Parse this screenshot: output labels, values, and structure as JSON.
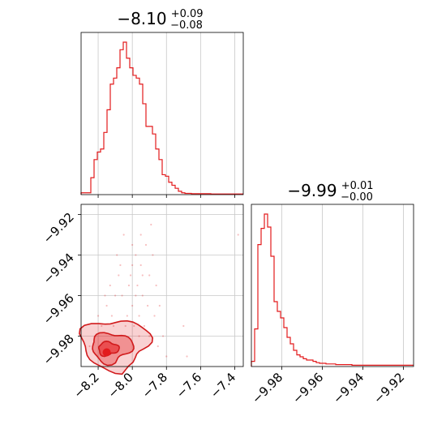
{
  "chart_data": [
    {
      "type": "histogram",
      "panel": "marginal-param1",
      "title": {
        "value": "−8.10",
        "upper": "+0.09",
        "lower": "−0.08"
      },
      "xlim": [
        -8.3,
        -7.35
      ],
      "grid": true,
      "color": "#e31a1c",
      "bin_edges_start": -8.3,
      "bin_width": 0.019,
      "counts": [
        6,
        6,
        6,
        56,
        116,
        141,
        151,
        206,
        281,
        366,
        386,
        420,
        480,
        505,
        452,
        420,
        395,
        386,
        366,
        301,
        226,
        226,
        201,
        151,
        116,
        66,
        61,
        41,
        31,
        21,
        11,
        6,
        4,
        4,
        3,
        3,
        3,
        3,
        3,
        3,
        2,
        2,
        2,
        2,
        2,
        2,
        2,
        2,
        2,
        2
      ]
    },
    {
      "type": "histogram",
      "panel": "marginal-param2",
      "title": {
        "value": "−9.99",
        "upper": "+0.01",
        "lower": "−0.00"
      },
      "xlim": [
        -9.995,
        -9.915
      ],
      "grid": true,
      "color": "#e31a1c",
      "xticks": [
        "−9.98",
        "−9.96",
        "−9.94",
        "−9.92"
      ],
      "xtick_values": [
        -9.98,
        -9.96,
        -9.94,
        -9.92
      ],
      "bin_edges_start": -9.995,
      "bin_width": 0.0016,
      "counts": [
        8,
        58,
        188,
        213,
        235,
        215,
        170,
        100,
        85,
        75,
        60,
        45,
        35,
        25,
        18,
        15,
        12,
        10,
        10,
        8,
        6,
        5,
        5,
        4,
        4,
        4,
        3,
        3,
        3,
        3,
        3,
        2,
        2,
        2,
        2,
        2,
        2,
        2,
        2,
        2,
        2,
        2,
        2,
        2,
        2,
        2,
        2,
        2,
        2,
        2
      ]
    },
    {
      "type": "scatter",
      "panel": "joint-density",
      "xlim": [
        -8.3,
        -7.35
      ],
      "ylim": [
        -9.995,
        -9.915
      ],
      "grid": true,
      "color": "#e31a1c",
      "xticks": [
        "−8.2",
        "−8.0",
        "−7.8",
        "−7.6",
        "−7.4"
      ],
      "xtick_values": [
        -8.2,
        -8.0,
        -7.8,
        -7.6,
        -7.4
      ],
      "yticks": [
        "−9.92",
        "−9.94",
        "−9.96",
        "−9.98"
      ],
      "ytick_values": [
        -9.92,
        -9.94,
        -9.96,
        -9.98
      ],
      "density_peak": {
        "x": -8.15,
        "y": -9.988
      },
      "contour_levels": [
        {
          "center": [
            -8.14,
            -9.986
          ],
          "radius": [
            0.06,
            0.003
          ],
          "fill_opacity": 0.55
        },
        {
          "center": [
            -8.12,
            -9.985
          ],
          "radius": [
            0.12,
            0.0065
          ],
          "fill_opacity": 0.35
        },
        {
          "center": [
            -8.1,
            -9.983
          ],
          "radius": [
            0.2,
            0.011
          ],
          "fill_opacity": 0.2
        }
      ],
      "points": [
        [
          -8.05,
          -9.93
        ],
        [
          -7.98,
          -9.94
        ],
        [
          -8.02,
          -9.955
        ],
        [
          -7.95,
          -9.945
        ],
        [
          -8.1,
          -9.96
        ],
        [
          -7.92,
          -9.935
        ],
        [
          -8.0,
          -9.965
        ],
        [
          -7.97,
          -9.955
        ],
        [
          -8.12,
          -9.97
        ],
        [
          -7.9,
          -9.95
        ],
        [
          -8.08,
          -9.95
        ],
        [
          -7.94,
          -9.96
        ],
        [
          -8.15,
          -9.965
        ],
        [
          -7.88,
          -9.94
        ],
        [
          -8.0,
          -9.945
        ],
        [
          -7.96,
          -9.97
        ],
        [
          -8.18,
          -9.975
        ],
        [
          -7.86,
          -9.955
        ],
        [
          -8.06,
          -9.96
        ],
        [
          -7.99,
          -9.975
        ],
        [
          -8.2,
          -9.97
        ],
        [
          -7.84,
          -9.965
        ],
        [
          -8.03,
          -9.97
        ],
        [
          -7.93,
          -9.975
        ],
        [
          -8.09,
          -9.94
        ],
        [
          -7.89,
          -9.925
        ],
        [
          -7.95,
          -9.93
        ],
        [
          -8.04,
          -9.975
        ],
        [
          -7.91,
          -9.965
        ],
        [
          -8.13,
          -9.955
        ],
        [
          -7.82,
          -9.98
        ],
        [
          -8.22,
          -9.98
        ],
        [
          -7.7,
          -9.975
        ],
        [
          -7.87,
          -9.97
        ],
        [
          -8.01,
          -9.95
        ],
        [
          -7.98,
          -9.96
        ],
        [
          -7.85,
          -9.985
        ],
        [
          -8.07,
          -9.945
        ],
        [
          -7.96,
          -9.98
        ],
        [
          -8.11,
          -9.975
        ],
        [
          -7.9,
          -9.98
        ],
        [
          -8.16,
          -9.96
        ],
        [
          -7.38,
          -9.93
        ],
        [
          -7.68,
          -9.99
        ],
        [
          -7.8,
          -9.99
        ],
        [
          -8.25,
          -9.985
        ],
        [
          -8.0,
          -9.935
        ],
        [
          -7.94,
          -9.95
        ]
      ]
    }
  ]
}
